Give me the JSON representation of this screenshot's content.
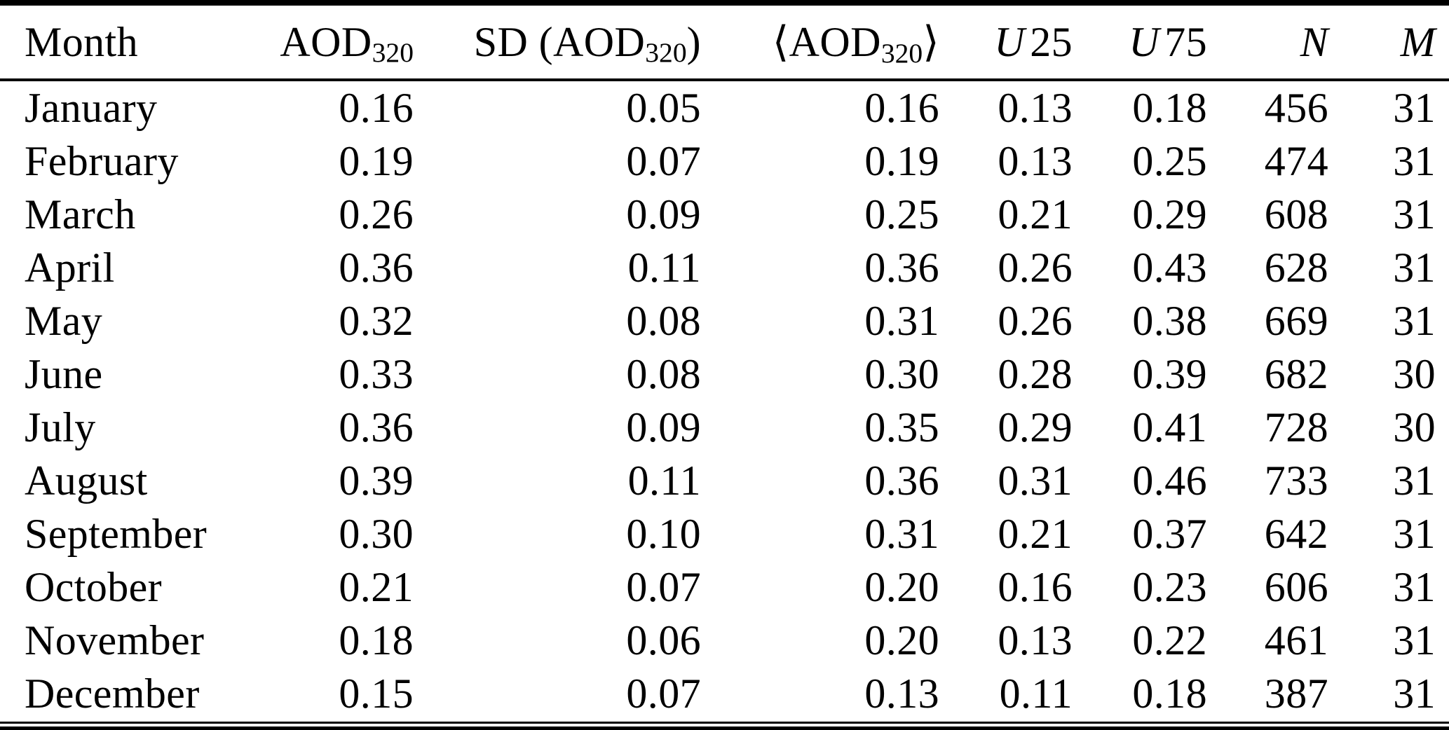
{
  "colors": {
    "background": "#ffffff",
    "text": "#000000",
    "rule": "#000000"
  },
  "table": {
    "headers": {
      "month": "Month",
      "aod_base": "AOD",
      "aod_sub": "320",
      "sd_pre": "SD (AOD",
      "sd_sub": "320",
      "sd_post": ")",
      "avg_pre": "⟨AOD",
      "avg_sub": "320",
      "avg_post": "⟩",
      "u25_var": "U",
      "u25_num": "25",
      "u75_var": "U",
      "u75_num": "75",
      "n": "N",
      "m": "M"
    },
    "rows": [
      {
        "month": "January",
        "aod": "0.16",
        "sd": "0.05",
        "avg": "0.16",
        "u25": "0.13",
        "u75": "0.18",
        "n": "456",
        "m": "31"
      },
      {
        "month": "February",
        "aod": "0.19",
        "sd": "0.07",
        "avg": "0.19",
        "u25": "0.13",
        "u75": "0.25",
        "n": "474",
        "m": "31"
      },
      {
        "month": "March",
        "aod": "0.26",
        "sd": "0.09",
        "avg": "0.25",
        "u25": "0.21",
        "u75": "0.29",
        "n": "608",
        "m": "31"
      },
      {
        "month": "April",
        "aod": "0.36",
        "sd": "0.11",
        "avg": "0.36",
        "u25": "0.26",
        "u75": "0.43",
        "n": "628",
        "m": "31"
      },
      {
        "month": "May",
        "aod": "0.32",
        "sd": "0.08",
        "avg": "0.31",
        "u25": "0.26",
        "u75": "0.38",
        "n": "669",
        "m": "31"
      },
      {
        "month": "June",
        "aod": "0.33",
        "sd": "0.08",
        "avg": "0.30",
        "u25": "0.28",
        "u75": "0.39",
        "n": "682",
        "m": "30"
      },
      {
        "month": "July",
        "aod": "0.36",
        "sd": "0.09",
        "avg": "0.35",
        "u25": "0.29",
        "u75": "0.41",
        "n": "728",
        "m": "30"
      },
      {
        "month": "August",
        "aod": "0.39",
        "sd": "0.11",
        "avg": "0.36",
        "u25": "0.31",
        "u75": "0.46",
        "n": "733",
        "m": "31"
      },
      {
        "month": "September",
        "aod": "0.30",
        "sd": "0.10",
        "avg": "0.31",
        "u25": "0.21",
        "u75": "0.37",
        "n": "642",
        "m": "31"
      },
      {
        "month": "October",
        "aod": "0.21",
        "sd": "0.07",
        "avg": "0.20",
        "u25": "0.16",
        "u75": "0.23",
        "n": "606",
        "m": "31"
      },
      {
        "month": "November",
        "aod": "0.18",
        "sd": "0.06",
        "avg": "0.20",
        "u25": "0.13",
        "u75": "0.22",
        "n": "461",
        "m": "31"
      },
      {
        "month": "December",
        "aod": "0.15",
        "sd": "0.07",
        "avg": "0.13",
        "u25": "0.11",
        "u75": "0.18",
        "n": "387",
        "m": "31"
      }
    ]
  }
}
